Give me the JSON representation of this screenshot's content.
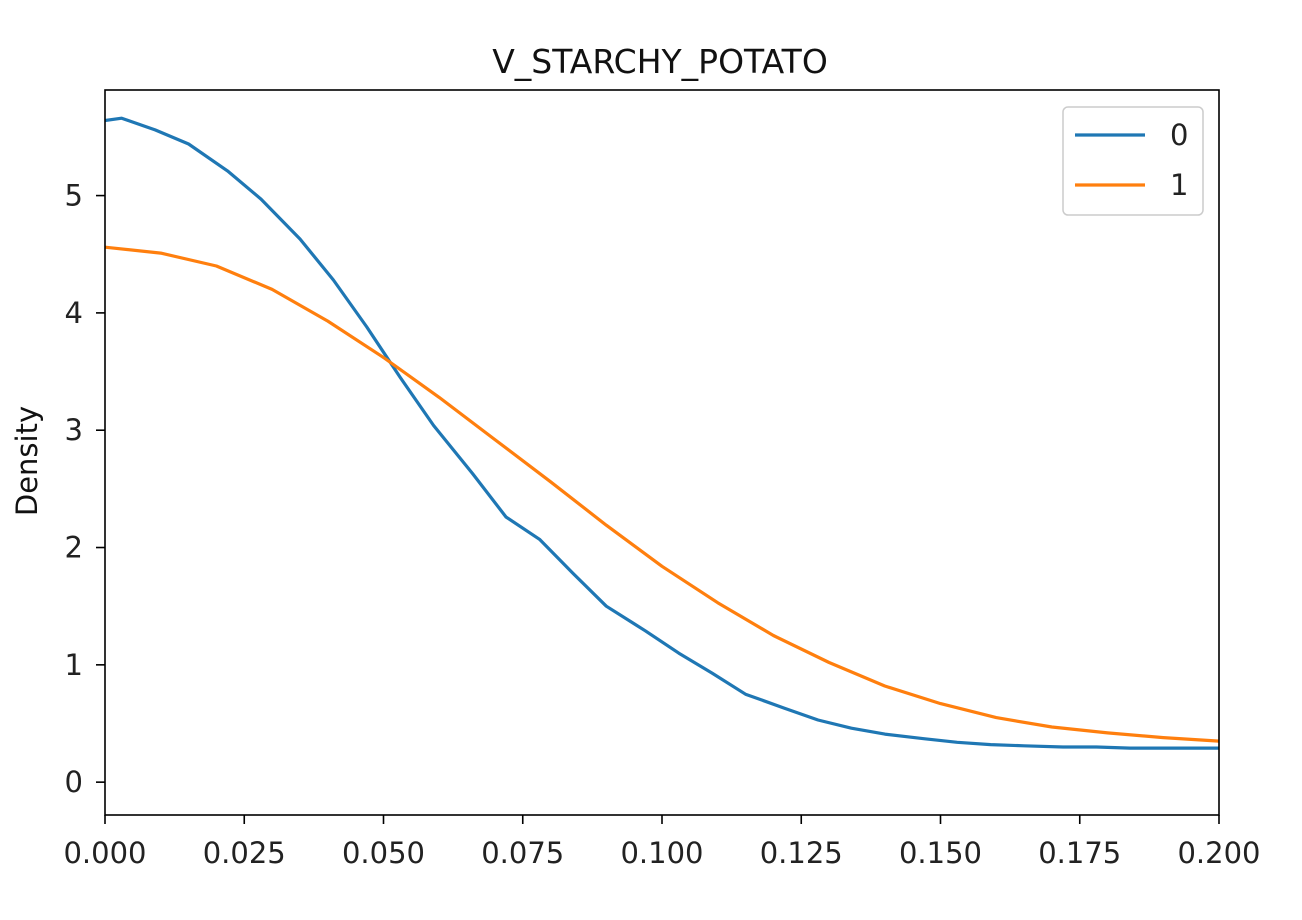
{
  "chart_data": {
    "type": "line",
    "title": "V_STARCHY_POTATO",
    "xlabel": "",
    "ylabel": "Density",
    "xlim": [
      0.0,
      0.2
    ],
    "ylim": [
      -0.28,
      5.9
    ],
    "x_ticks": [
      0.0,
      0.025,
      0.05,
      0.075,
      0.1,
      0.125,
      0.15,
      0.175,
      0.2
    ],
    "x_tick_labels": [
      "0.000",
      "0.025",
      "0.050",
      "0.075",
      "0.100",
      "0.125",
      "0.150",
      "0.175",
      "0.200"
    ],
    "y_ticks": [
      0,
      1,
      2,
      3,
      4,
      5
    ],
    "y_tick_labels": [
      "0",
      "1",
      "2",
      "3",
      "4",
      "5"
    ],
    "grid": false,
    "legend_position": "top-right",
    "series": [
      {
        "name": "0",
        "color": "#1f77b4",
        "x": [
          0.0,
          0.003,
          0.009,
          0.015,
          0.022,
          0.028,
          0.035,
          0.041,
          0.047,
          0.053,
          0.059,
          0.066,
          0.072,
          0.078,
          0.084,
          0.09,
          0.097,
          0.103,
          0.109,
          0.115,
          0.122,
          0.128,
          0.134,
          0.14,
          0.147,
          0.153,
          0.159,
          0.165,
          0.172,
          0.178,
          0.184,
          0.19,
          0.2
        ],
        "y": [
          5.64,
          5.66,
          5.56,
          5.44,
          5.21,
          4.97,
          4.63,
          4.28,
          3.88,
          3.45,
          3.04,
          2.63,
          2.26,
          2.07,
          1.78,
          1.5,
          1.29,
          1.1,
          0.93,
          0.75,
          0.63,
          0.53,
          0.46,
          0.41,
          0.37,
          0.34,
          0.32,
          0.31,
          0.3,
          0.3,
          0.29,
          0.29,
          0.29
        ]
      },
      {
        "name": "1",
        "color": "#ff7f0e",
        "x": [
          0.0,
          0.01,
          0.02,
          0.03,
          0.04,
          0.05,
          0.06,
          0.07,
          0.08,
          0.09,
          0.1,
          0.11,
          0.12,
          0.13,
          0.14,
          0.15,
          0.16,
          0.17,
          0.18,
          0.19,
          0.2
        ],
        "y": [
          4.56,
          4.51,
          4.4,
          4.2,
          3.93,
          3.62,
          3.28,
          2.92,
          2.56,
          2.19,
          1.84,
          1.53,
          1.25,
          1.02,
          0.82,
          0.67,
          0.55,
          0.47,
          0.42,
          0.38,
          0.35
        ]
      }
    ]
  }
}
